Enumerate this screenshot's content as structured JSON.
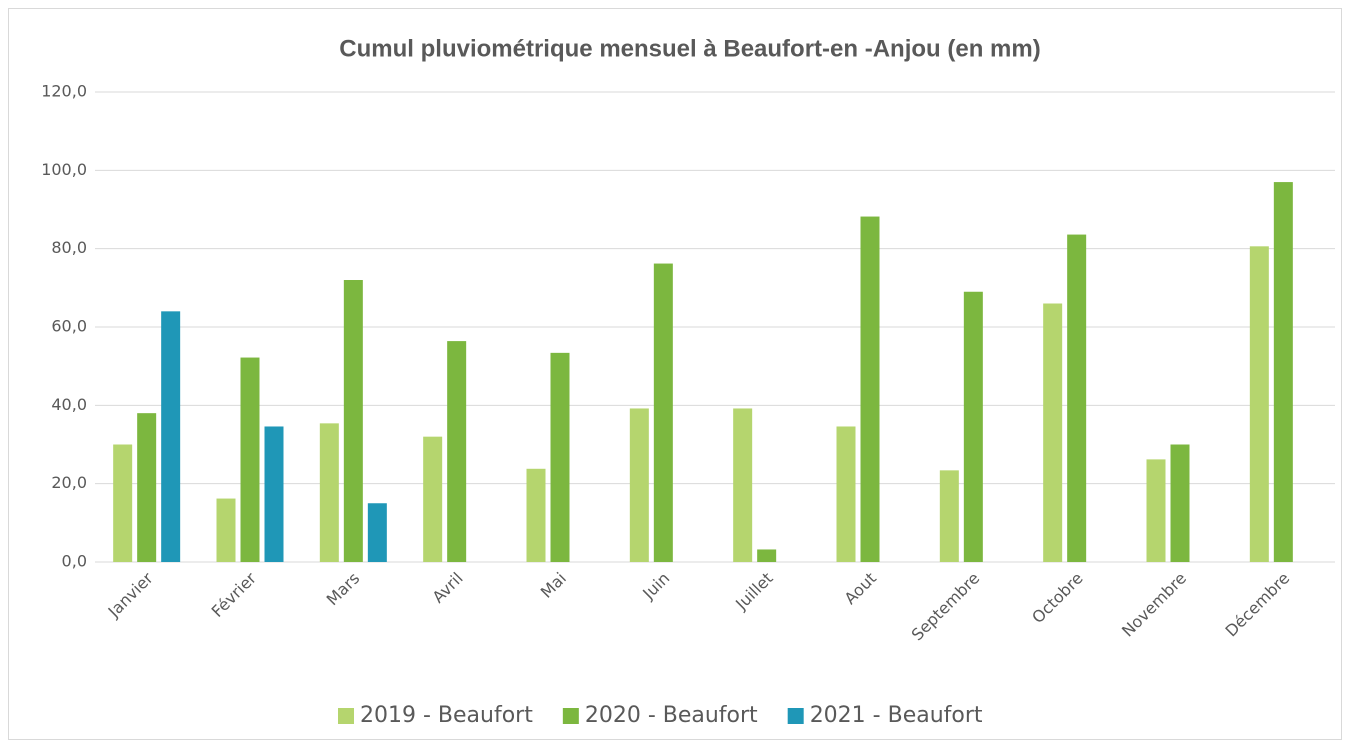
{
  "chart_data": {
    "type": "bar",
    "title": "Cumul pluviométrique mensuel à Beaufort-en -Anjou (en mm)",
    "categories": [
      "Janvier",
      "Février",
      "Mars",
      "Avril",
      "Mai",
      "Juin",
      "Juillet",
      "Aout",
      "Septembre",
      "Octobre",
      "Novembre",
      "Décembre"
    ],
    "series": [
      {
        "name": "2019 - Beaufort",
        "color": "#b5d56e",
        "values": [
          30.0,
          16.2,
          35.4,
          32.0,
          23.8,
          39.2,
          39.2,
          34.6,
          23.4,
          66.0,
          26.2,
          80.6
        ]
      },
      {
        "name": "2020 - Beaufort",
        "color": "#7cb73f",
        "values": [
          38.0,
          52.2,
          72.0,
          56.4,
          53.4,
          76.2,
          3.2,
          88.2,
          69.0,
          83.6,
          30.0,
          97.0
        ]
      },
      {
        "name": "2021 - Beaufort",
        "color": "#1f97b7",
        "values": [
          64.0,
          34.6,
          15.0,
          null,
          null,
          null,
          null,
          null,
          null,
          null,
          null,
          null
        ]
      }
    ],
    "ylim": [
      0,
      120
    ],
    "yticks": [
      {
        "value": 0,
        "label": "0,0"
      },
      {
        "value": 20,
        "label": "20,0"
      },
      {
        "value": 40,
        "label": "40,0"
      },
      {
        "value": 60,
        "label": "60,0"
      },
      {
        "value": 80,
        "label": "80,0"
      },
      {
        "value": 100,
        "label": "100,0"
      },
      {
        "value": 120,
        "label": "120,0"
      }
    ],
    "grid": true,
    "legend": "bottom"
  }
}
